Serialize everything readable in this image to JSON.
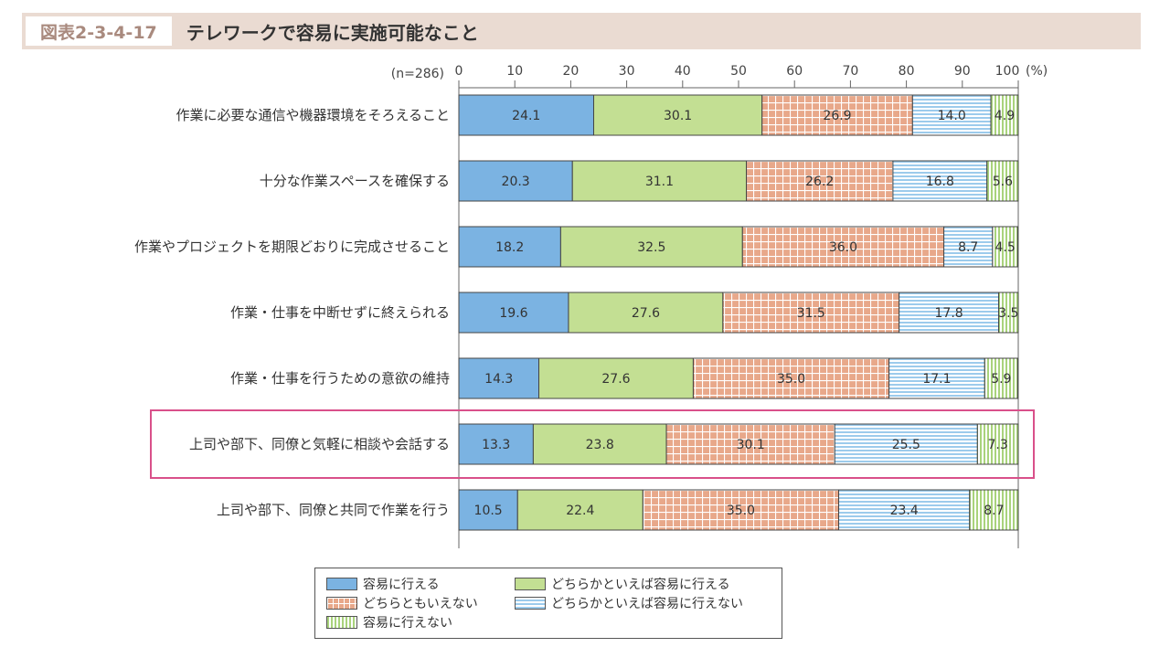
{
  "header": {
    "figure_number": "図表2-3-4-17",
    "title": "テレワークで容易に実施可能なこと"
  },
  "chart_data": {
    "type": "bar",
    "orientation": "horizontal",
    "stacked": true,
    "n_label": "(n=286)",
    "unit_label": "(%)",
    "xlim": [
      0,
      100
    ],
    "ticks": [
      "0",
      "10",
      "20",
      "30",
      "40",
      "50",
      "60",
      "70",
      "80",
      "90",
      "100"
    ],
    "categories": [
      "作業に必要な通信や機器環境をそろえること",
      "十分な作業スペースを確保する",
      "作業やプロジェクトを期限どおりに完成させること",
      "作業・仕事を中断せずに終えられる",
      "作業・仕事を行うための意欲の維持",
      "上司や部下、同僚と気軽に相談や会話する",
      "上司や部下、同僚と共同で作業を行う"
    ],
    "series": [
      {
        "name": "容易に行える",
        "color": "#7bb3e2",
        "pattern": "solid",
        "values": [
          24.1,
          20.3,
          18.2,
          19.6,
          14.3,
          13.3,
          10.5
        ],
        "labels": [
          "24.1",
          "20.3",
          "18.2",
          "19.6",
          "14.3",
          "13.3",
          "10.5"
        ]
      },
      {
        "name": "どちらかといえば容易に行える",
        "color": "#c3df93",
        "pattern": "solid",
        "values": [
          30.1,
          31.1,
          32.5,
          27.6,
          27.6,
          23.8,
          22.4
        ],
        "labels": [
          "30.1",
          "31.1",
          "32.5",
          "27.6",
          "27.6",
          "23.8",
          "22.4"
        ]
      },
      {
        "name": "どちらともいえない",
        "color": "#e8a88a",
        "pattern": "grid",
        "values": [
          26.9,
          26.2,
          36.0,
          31.5,
          35.0,
          30.1,
          35.0
        ],
        "labels": [
          "26.9",
          "26.2",
          "36.0",
          "31.5",
          "35.0",
          "30.1",
          "35.0"
        ]
      },
      {
        "name": "どちらかといえば容易に行えない",
        "color": "#9ccbec",
        "pattern": "hlines",
        "values": [
          14.0,
          16.8,
          8.7,
          17.8,
          17.1,
          25.5,
          23.4
        ],
        "labels": [
          "14.0",
          "16.8",
          "8.7",
          "17.8",
          "17.1",
          "25.5",
          "23.4"
        ]
      },
      {
        "name": "容易に行えない",
        "color": "#a9d37c",
        "pattern": "vlines",
        "values": [
          4.9,
          5.6,
          4.5,
          3.5,
          5.9,
          7.3,
          8.7
        ],
        "labels": [
          "4.9",
          "5.6",
          "4.5",
          "3.5",
          "5.9",
          "7.3",
          "8.7"
        ]
      }
    ],
    "highlighted_category_index": 5,
    "legend": {
      "placement": "bottom"
    }
  }
}
